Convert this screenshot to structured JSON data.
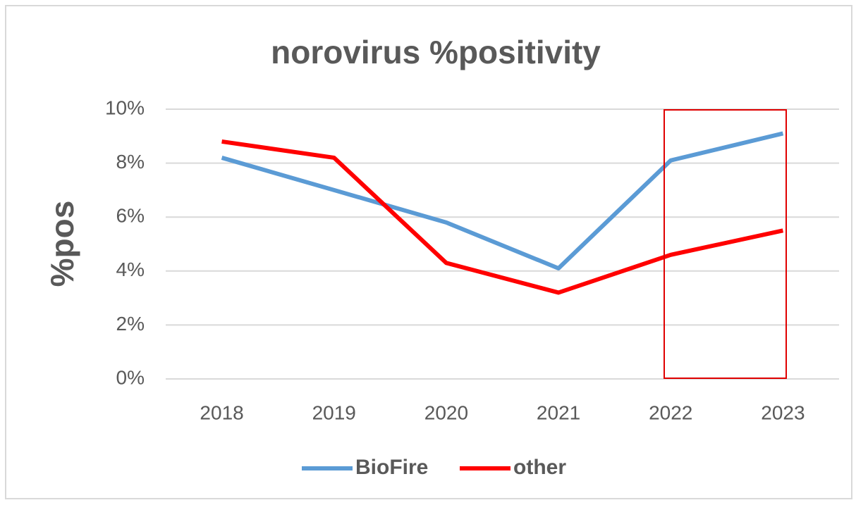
{
  "chart_data": {
    "type": "line",
    "title": "norovirus %positivity",
    "y_label": "%pos",
    "categories": [
      "2018",
      "2019",
      "2020",
      "2021",
      "2022",
      "2023"
    ],
    "series": [
      {
        "name": "BioFire",
        "color": "#5b9bd5",
        "values": [
          8.2,
          7.0,
          5.8,
          4.1,
          8.1,
          9.1
        ]
      },
      {
        "name": "other",
        "color": "#ff0000",
        "values": [
          8.8,
          8.2,
          4.3,
          3.2,
          4.6,
          5.5
        ]
      }
    ],
    "ylim": [
      0,
      10
    ],
    "yticks": [
      {
        "value": 0,
        "label": "0%"
      },
      {
        "value": 2,
        "label": "2%"
      },
      {
        "value": 4,
        "label": "4%"
      },
      {
        "value": 6,
        "label": "6%"
      },
      {
        "value": 8,
        "label": "8%"
      },
      {
        "value": 10,
        "label": "10%"
      }
    ],
    "grid": true,
    "legend": "bottom"
  }
}
